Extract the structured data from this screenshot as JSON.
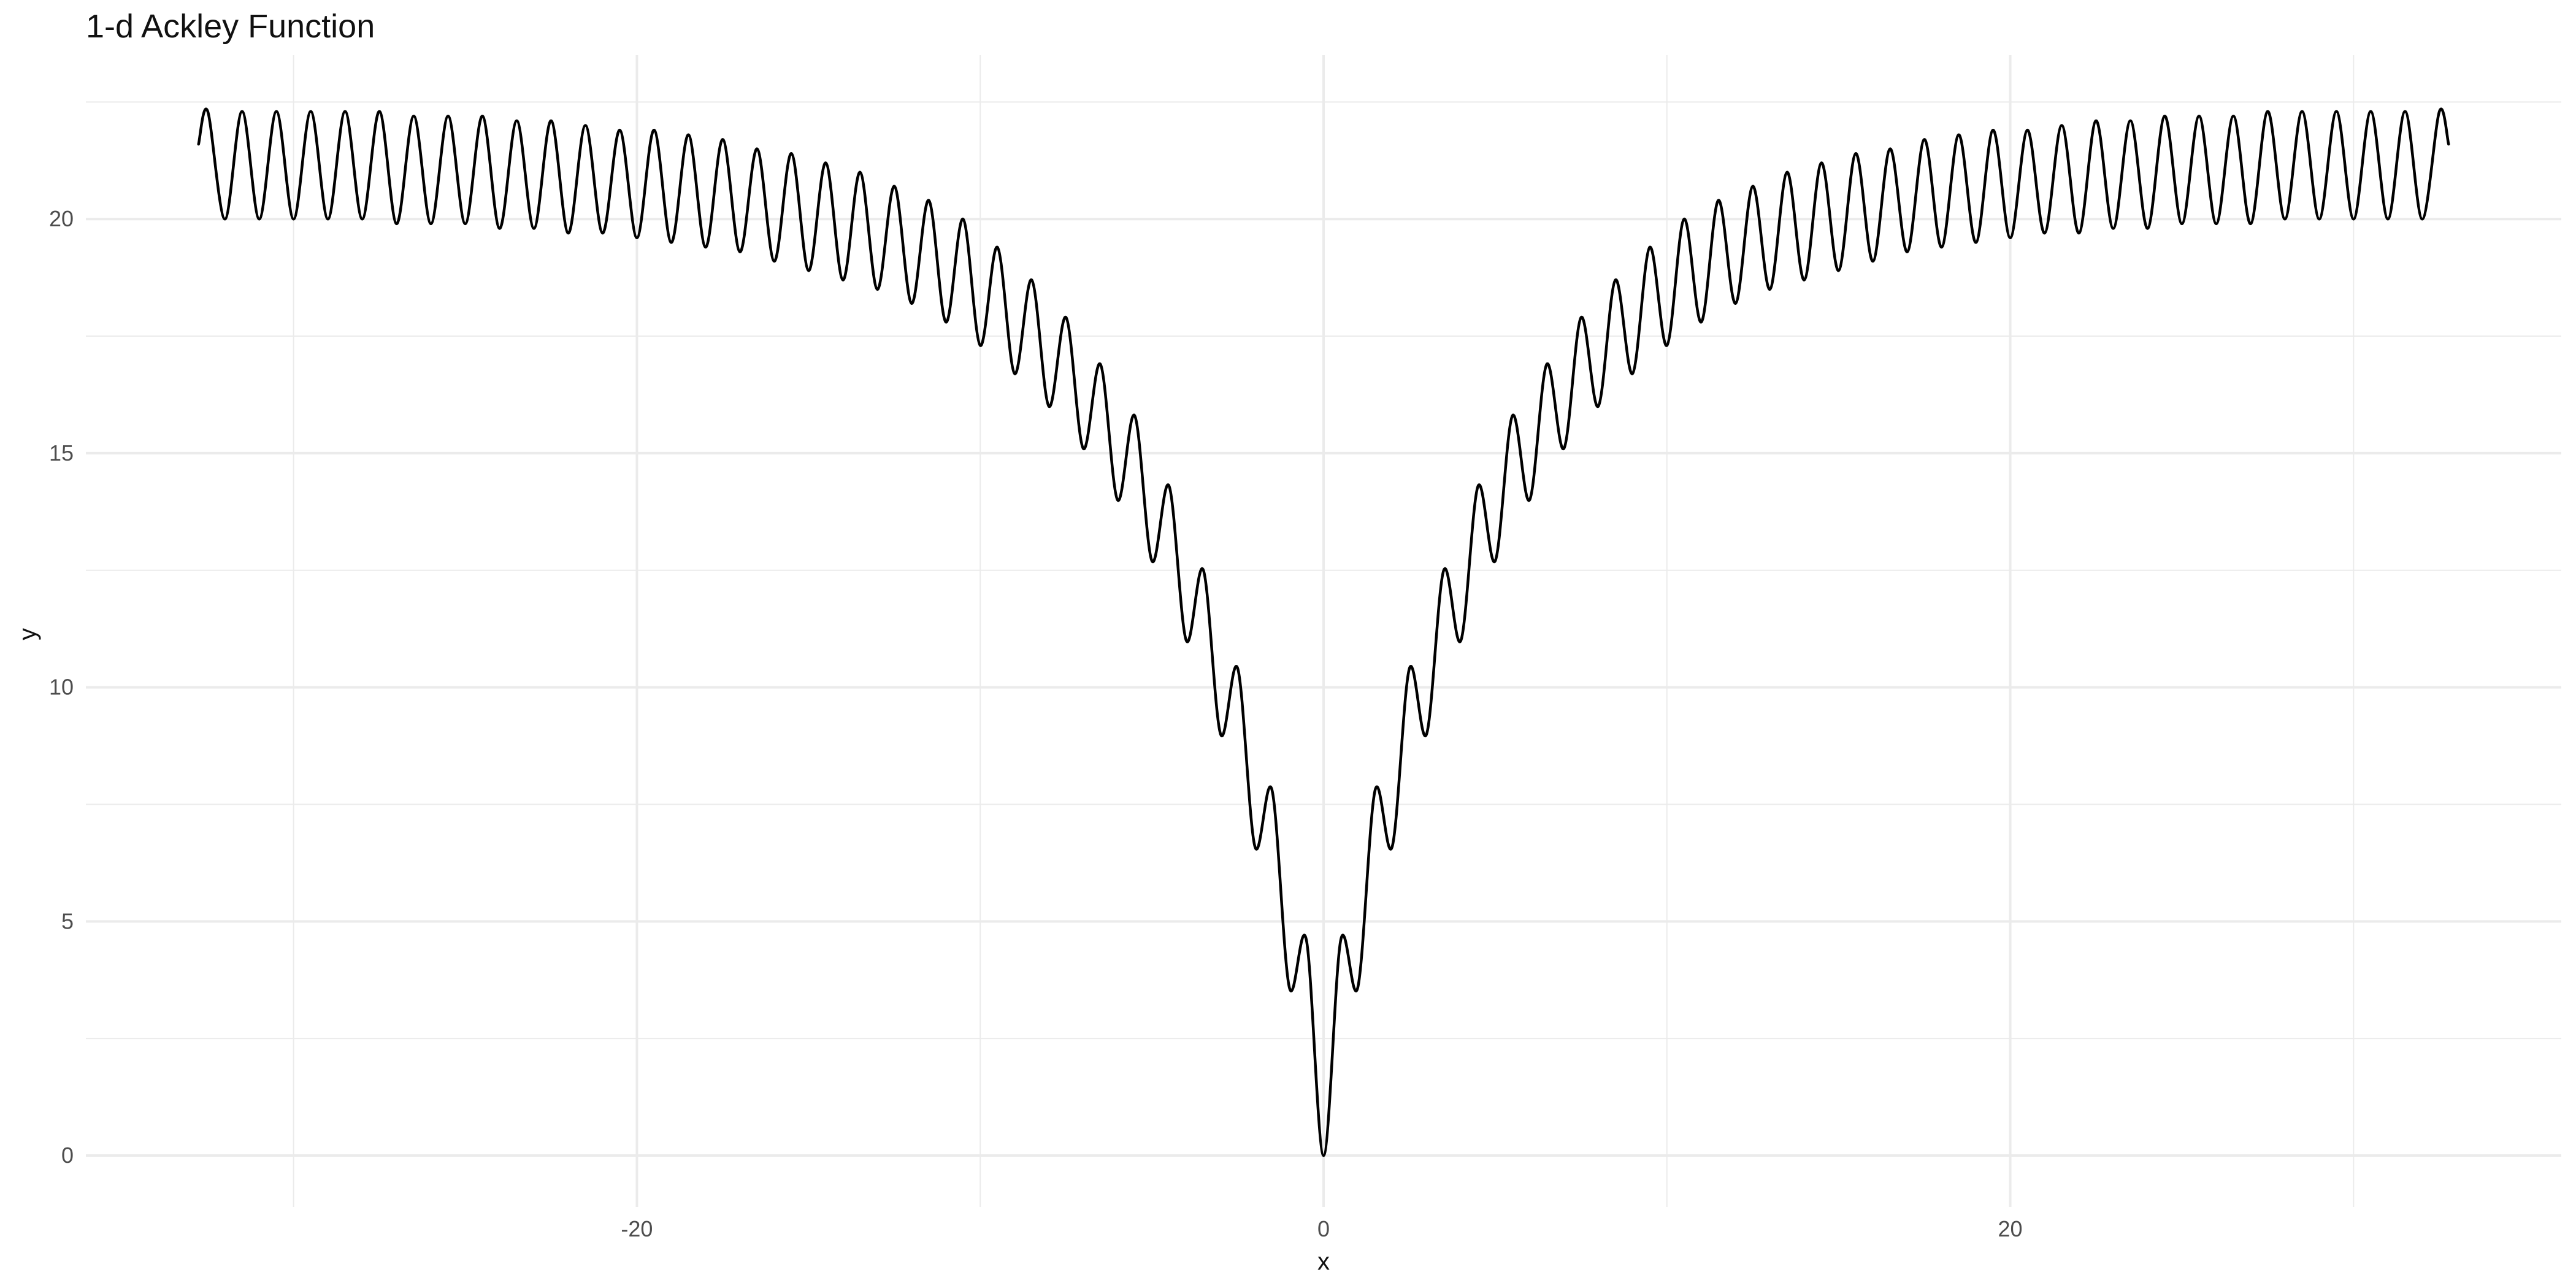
{
  "chart_data": {
    "type": "line",
    "title": "1-d Ackley Function",
    "xlabel": "x",
    "ylabel": "y",
    "xlim": [
      -36.05,
      36.05
    ],
    "ylim": [
      -1.1,
      23.5
    ],
    "x_ticks": [
      -20,
      0,
      20
    ],
    "x_tick_labels": [
      "-20",
      "0",
      "20"
    ],
    "x_minor_ticks": [
      -30,
      -10,
      10,
      30
    ],
    "y_ticks": [
      0,
      5,
      10,
      15,
      20
    ],
    "y_tick_labels": [
      "0",
      "5",
      "10",
      "15",
      "20"
    ],
    "y_minor_ticks": [
      2.5,
      7.5,
      12.5,
      17.5,
      22.5
    ],
    "grid": true,
    "legend": "none",
    "line_color": "#000000",
    "grid_color": "#ebebeb",
    "series": [
      {
        "x": [
          -32.768,
          -32.5,
          -32.0,
          -31.5,
          -31.0,
          -30.5,
          -30.0,
          -29.5,
          -29.0,
          -28.5,
          -28.0,
          -27.5,
          -27.0,
          -26.5,
          -26.0,
          -25.5,
          -25.0,
          -24.5,
          -24.0,
          -23.5,
          -23.0,
          -22.5,
          -22.0,
          -21.5,
          -21.0,
          -20.5,
          -20.0,
          -19.5,
          -19.0,
          -18.5,
          -18.0,
          -17.5,
          -17.0,
          -16.5,
          -16.0,
          -15.5,
          -15.0,
          -14.5,
          -14.0,
          -13.5,
          -13.0,
          -12.5,
          -12.0,
          -11.5,
          -11.0,
          -10.5,
          -10.0,
          -9.5,
          -9.0,
          -8.5,
          -8.0,
          -7.5,
          -7.0,
          -6.5,
          -6.0,
          -5.5,
          -5.0,
          -4.5,
          -4.0,
          -3.5,
          -3.0,
          -2.5,
          -2.0,
          -1.5,
          -1.0,
          -0.5,
          0.0,
          0.5,
          1.0,
          1.5,
          2.0,
          2.5,
          3.0,
          3.5,
          4.0,
          4.5,
          5.0,
          5.5,
          6.0,
          6.5,
          7.0,
          7.5,
          8.0,
          8.5,
          9.0,
          9.5,
          10.0,
          10.5,
          11.0,
          11.5,
          12.0,
          12.5,
          13.0,
          13.5,
          14.0,
          14.5,
          15.0,
          15.5,
          16.0,
          16.5,
          17.0,
          17.5,
          18.0,
          18.5,
          19.0,
          19.5,
          20.0,
          20.5,
          21.0,
          21.5,
          22.0,
          22.5,
          23.0,
          23.5,
          24.0,
          24.5,
          25.0,
          25.5,
          26.0,
          26.5,
          27.0,
          27.5,
          28.0,
          28.5,
          29.0,
          29.5,
          30.0,
          30.5,
          31.0,
          31.5,
          32.0,
          32.5,
          32.768
        ],
        "y": [
          21.6,
          22.3,
          20.0,
          22.3,
          20.0,
          22.3,
          20.0,
          22.3,
          20.0,
          22.3,
          20.0,
          22.3,
          19.9,
          22.2,
          19.9,
          22.2,
          19.9,
          22.2,
          19.8,
          22.1,
          19.8,
          22.1,
          19.7,
          22.0,
          19.7,
          21.9,
          19.6,
          21.9,
          19.5,
          21.8,
          19.4,
          21.7,
          19.3,
          21.5,
          19.1,
          21.4,
          18.9,
          21.2,
          18.7,
          21.0,
          18.5,
          20.7,
          18.2,
          20.4,
          17.8,
          20.0,
          17.3,
          19.4,
          16.7,
          18.7,
          16.0,
          17.9,
          15.1,
          16.9,
          14.0,
          15.8,
          12.7,
          14.3,
          11.0,
          12.5,
          9.0,
          10.4,
          6.6,
          7.8,
          3.6,
          4.6,
          0.0,
          4.6,
          3.6,
          7.8,
          6.6,
          10.4,
          9.0,
          12.5,
          11.0,
          14.3,
          12.7,
          15.8,
          14.0,
          16.9,
          15.1,
          17.9,
          16.0,
          18.7,
          16.7,
          19.4,
          17.3,
          20.0,
          17.8,
          20.4,
          18.2,
          20.7,
          18.5,
          21.0,
          18.7,
          21.2,
          18.9,
          21.4,
          19.1,
          21.5,
          19.3,
          21.7,
          19.4,
          21.8,
          19.5,
          21.9,
          19.6,
          21.9,
          19.7,
          22.0,
          19.7,
          22.1,
          19.8,
          22.1,
          19.8,
          22.2,
          19.9,
          22.2,
          19.9,
          22.2,
          19.9,
          22.3,
          20.0,
          22.3,
          20.0,
          22.3,
          20.0,
          22.3,
          20.0,
          22.3,
          20.0,
          22.3,
          21.6
        ]
      }
    ]
  }
}
